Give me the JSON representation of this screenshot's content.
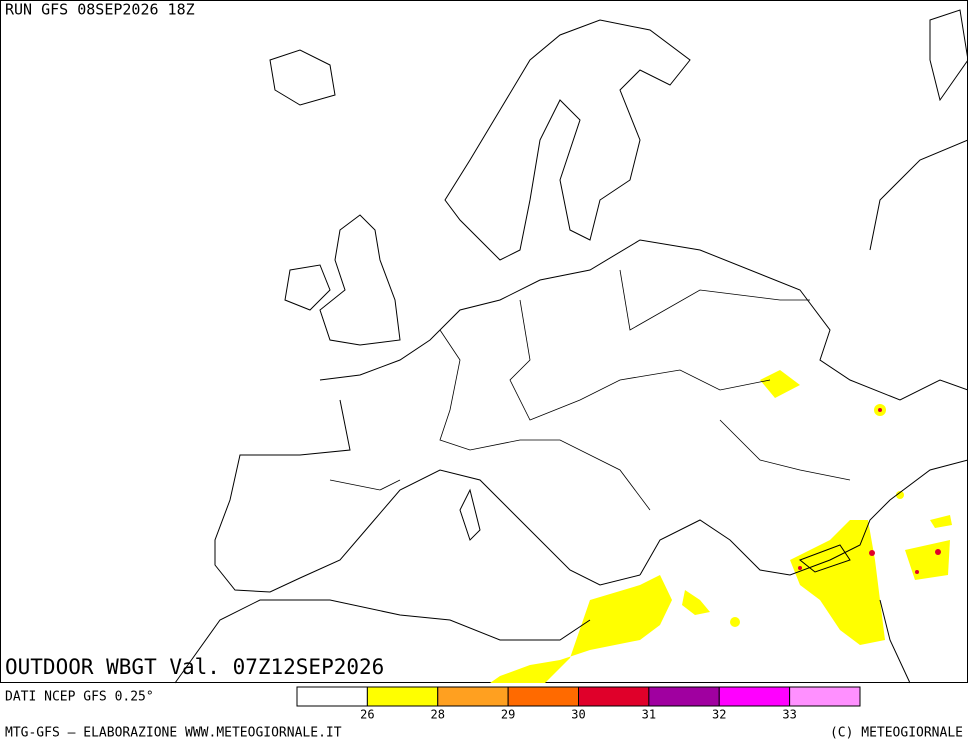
{
  "header": {
    "run": "RUN GFS 08SEP2026 18Z"
  },
  "map": {
    "title": "OUTDOOR WBGT Val. 07Z12SEP2026"
  },
  "legend": {
    "colors": [
      "#ffffff",
      "#ffff00",
      "#ffa020",
      "#ff6a00",
      "#e0002a",
      "#a000a0",
      "#ff00ff",
      "#ff90ff"
    ],
    "ticks": [
      26,
      28,
      29,
      30,
      31,
      32,
      33
    ]
  },
  "source": "DATI NCEP GFS 0.25°",
  "footer": {
    "left": "MTG-GFS — ELABORAZIONE WWW.METEOGIORNALE.IT",
    "right": "(C) METEOGIORNALE"
  }
}
